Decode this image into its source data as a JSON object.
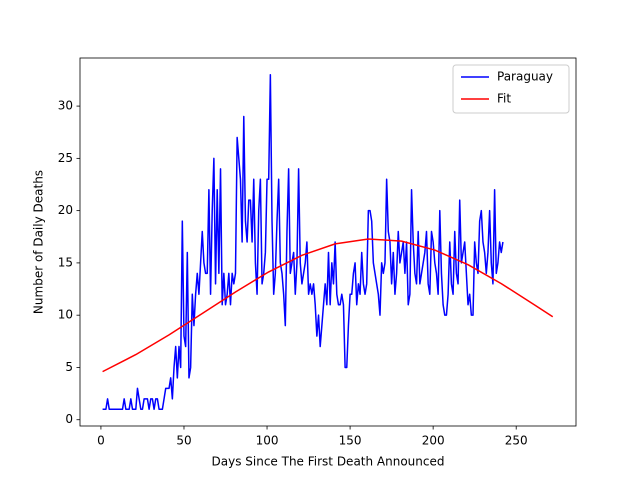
{
  "chart_data": {
    "type": "line",
    "xlabel": "Days Since The First Death Announced",
    "ylabel": "Number of Daily Deaths",
    "xlim": [
      -12.6,
      286
    ],
    "ylim": [
      -0.6,
      34.6
    ],
    "xticks": [
      0,
      50,
      100,
      150,
      200,
      250
    ],
    "yticks": [
      0,
      5,
      10,
      15,
      20,
      25,
      30
    ],
    "legend": "upper right",
    "series": [
      {
        "name": "Paraguay",
        "color": "#0000ff",
        "x": [
          1,
          2,
          3,
          4,
          5,
          6,
          7,
          8,
          9,
          10,
          11,
          12,
          13,
          14,
          15,
          16,
          17,
          18,
          19,
          20,
          21,
          22,
          23,
          24,
          25,
          26,
          27,
          28,
          29,
          30,
          31,
          32,
          33,
          34,
          35,
          36,
          37,
          38,
          39,
          40,
          41,
          42,
          43,
          44,
          45,
          46,
          47,
          48,
          49,
          50,
          51,
          52,
          53,
          54,
          55,
          56,
          57,
          58,
          59,
          60,
          61,
          62,
          63,
          64,
          65,
          66,
          67,
          68,
          69,
          70,
          71,
          72,
          73,
          74,
          75,
          76,
          77,
          78,
          79,
          80,
          81,
          82,
          83,
          84,
          85,
          86,
          87,
          88,
          89,
          90,
          91,
          92,
          93,
          94,
          95,
          96,
          97,
          98,
          99,
          100,
          101,
          102,
          103,
          104,
          105,
          106,
          107,
          108,
          109,
          110,
          111,
          112,
          113,
          114,
          115,
          116,
          117,
          118,
          119,
          120,
          121,
          122,
          123,
          124,
          125,
          126,
          127,
          128,
          129,
          130,
          131,
          132,
          133,
          134,
          135,
          136,
          137,
          138,
          139,
          140,
          141,
          142,
          143,
          144,
          145,
          146,
          147,
          148,
          149,
          150,
          151,
          152,
          153,
          154,
          155,
          156,
          157,
          158,
          159,
          160,
          161,
          162,
          163,
          164,
          165,
          166,
          167,
          168,
          169,
          170,
          171,
          172,
          173,
          174,
          175,
          176,
          177,
          178,
          179,
          180,
          181,
          182,
          183,
          184,
          185,
          186,
          187,
          188,
          189,
          190,
          191,
          192,
          193,
          194,
          195,
          196,
          197,
          198,
          199,
          200,
          201,
          202,
          203,
          204,
          205,
          206,
          207,
          208,
          209,
          210,
          211,
          212,
          213,
          214,
          215,
          216,
          217,
          218,
          219,
          220,
          221,
          222,
          223,
          224,
          225,
          226,
          227,
          228,
          229,
          230,
          231,
          232,
          233,
          234,
          235,
          236,
          237,
          238,
          239,
          240,
          241,
          242
        ],
        "values": [
          1,
          1,
          1,
          2,
          1,
          1,
          1,
          1,
          1,
          1,
          1,
          1,
          1,
          2,
          1,
          1,
          1,
          2,
          1,
          1,
          1,
          3,
          2,
          1,
          1,
          2,
          2,
          2,
          1,
          2,
          2,
          1,
          2,
          2,
          1,
          1,
          1,
          2,
          3,
          3,
          3,
          4,
          2,
          5,
          7,
          4,
          7,
          5,
          19,
          8,
          7,
          16,
          4,
          5,
          12,
          9,
          12,
          14,
          12,
          15,
          18,
          15,
          14,
          14,
          22,
          12,
          20,
          25,
          13,
          22,
          14,
          24,
          11,
          14,
          11,
          12,
          14,
          11,
          14,
          13,
          14,
          27,
          25,
          23,
          17,
          29,
          19,
          17,
          21,
          21,
          17,
          23,
          15,
          12,
          20,
          23,
          13,
          14,
          16,
          23,
          23,
          33,
          19,
          12,
          14,
          19,
          23,
          15,
          14,
          12,
          9,
          18,
          24,
          14,
          15,
          16,
          12,
          15,
          24,
          15,
          13,
          14,
          15,
          17,
          12,
          13,
          12,
          13,
          11,
          8,
          10,
          7,
          9,
          11,
          13,
          11,
          16,
          11,
          15,
          13,
          17,
          12,
          11,
          11,
          12,
          11,
          5,
          5,
          9,
          12,
          12,
          14,
          15,
          11,
          13,
          12,
          16,
          13,
          12,
          13,
          20,
          20,
          19,
          15,
          14,
          13,
          12,
          10,
          15,
          14,
          15,
          23,
          18,
          17,
          13,
          16,
          12,
          14,
          18,
          15,
          16,
          17,
          14,
          17,
          11,
          12,
          22,
          17,
          14,
          13,
          18,
          13,
          14,
          15,
          16,
          18,
          13,
          12,
          18,
          17,
          15,
          14,
          12,
          20,
          14,
          11,
          10,
          10,
          12,
          17,
          13,
          12,
          18,
          14,
          13,
          21,
          15,
          16,
          17,
          14,
          11,
          12,
          10,
          10,
          17,
          15,
          14,
          19,
          20,
          17,
          16,
          14,
          16,
          20,
          15,
          13,
          22,
          14,
          15,
          17,
          16,
          17
        ]
      },
      {
        "name": "Fit",
        "color": "#ff0000",
        "x": [
          1,
          21,
          41,
          61,
          81,
          101,
          121,
          141,
          161,
          181,
          201,
          221,
          241,
          261,
          272
        ],
        "values": [
          4.6,
          6.23,
          8.12,
          10.16,
          12.22,
          14.14,
          15.73,
          16.82,
          17.29,
          17.08,
          16.23,
          14.83,
          13.02,
          10.99,
          9.85
        ]
      }
    ]
  }
}
